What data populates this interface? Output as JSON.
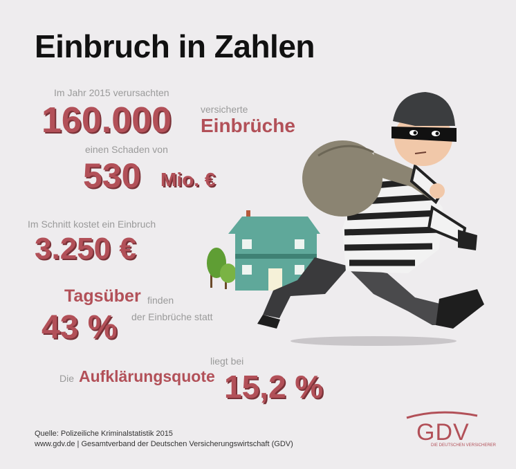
{
  "title": "Einbruch in Zahlen",
  "stats": {
    "s1_intro": "Im Jahr 2015 verursachten",
    "s1_value": "160.000",
    "s1_small": "versicherte",
    "s1_label": "Einbrüche",
    "s2_intro": "einen Schaden von",
    "s2_value": "530",
    "s2_unit": "Mio. €",
    "s3_intro": "Im Schnitt kostet ein Einbruch",
    "s3_value": "3.250 €",
    "s4_label": "Tagsüber",
    "s4_small1": "finden",
    "s4_value": "43 %",
    "s4_small2": "der Einbrüche statt",
    "s5_pre": "Die",
    "s5_label": "Aufklärungsquote",
    "s5_small": "liegt bei",
    "s5_value": "15,2 %"
  },
  "footer": {
    "source": "Quelle: Polizeiliche Kriminalstatistik 2015",
    "web": "www.gdv.de | Gesamtverband der Deutschen Versicherungswirtschaft (GDV)"
  },
  "logo": {
    "text": "GDV",
    "tagline": "DIE DEUTSCHEN VERSICHERER"
  },
  "colors": {
    "accent": "#b25058",
    "house": "#5fa89a",
    "tree": "#6ba43a"
  }
}
